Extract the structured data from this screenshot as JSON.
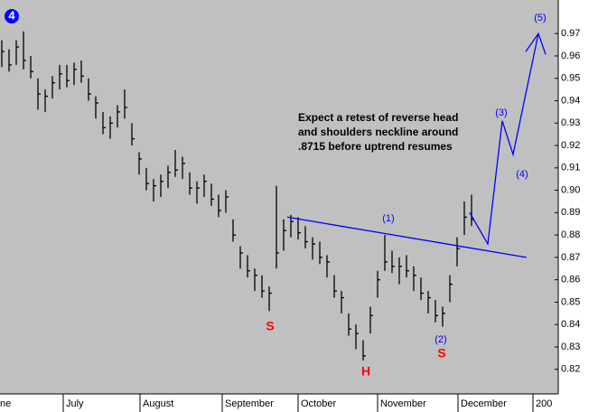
{
  "chart_data": {
    "type": "ohlc",
    "x": [
      0,
      1,
      2,
      3,
      4,
      5,
      6,
      7,
      8,
      9,
      10,
      11,
      12,
      13,
      14,
      15,
      16,
      17,
      18,
      19,
      20,
      21,
      22,
      23,
      24,
      25,
      26,
      27,
      28,
      29,
      30,
      31,
      32,
      33,
      34,
      35,
      36,
      37,
      38,
      39,
      40,
      41,
      42,
      43,
      44,
      45,
      46,
      47,
      48,
      49,
      50,
      51,
      52,
      53,
      54,
      55,
      56,
      57,
      58,
      59,
      60,
      61,
      62,
      63,
      64,
      65
    ],
    "high": [
      0.967,
      0.963,
      0.967,
      0.971,
      0.96,
      0.95,
      0.945,
      0.951,
      0.956,
      0.956,
      0.957,
      0.958,
      0.95,
      0.942,
      0.935,
      0.933,
      0.938,
      0.945,
      0.93,
      0.917,
      0.91,
      0.905,
      0.907,
      0.911,
      0.918,
      0.915,
      0.908,
      0.904,
      0.907,
      0.903,
      0.898,
      0.9,
      0.887,
      0.875,
      0.871,
      0.865,
      0.862,
      0.857,
      0.902,
      0.887,
      0.889,
      0.888,
      0.884,
      0.879,
      0.877,
      0.871,
      0.862,
      0.855,
      0.845,
      0.84,
      0.833,
      0.848,
      0.864,
      0.88,
      0.873,
      0.87,
      0.871,
      0.866,
      0.861,
      0.855,
      0.851,
      0.848,
      0.862,
      0.879,
      0.895,
      0.898
    ],
    "low": [
      0.955,
      0.953,
      0.956,
      0.954,
      0.95,
      0.936,
      0.935,
      0.941,
      0.945,
      0.946,
      0.947,
      0.948,
      0.94,
      0.932,
      0.925,
      0.923,
      0.928,
      0.932,
      0.92,
      0.907,
      0.9,
      0.895,
      0.897,
      0.901,
      0.906,
      0.905,
      0.898,
      0.894,
      0.897,
      0.893,
      0.888,
      0.89,
      0.877,
      0.865,
      0.861,
      0.855,
      0.852,
      0.846,
      0.865,
      0.873,
      0.879,
      0.878,
      0.874,
      0.869,
      0.867,
      0.861,
      0.852,
      0.845,
      0.835,
      0.829,
      0.824,
      0.836,
      0.852,
      0.864,
      0.863,
      0.858,
      0.861,
      0.855,
      0.851,
      0.845,
      0.841,
      0.839,
      0.85,
      0.866,
      0.88,
      0.884
    ],
    "close": [
      0.962,
      0.956,
      0.964,
      0.958,
      0.953,
      0.943,
      0.942,
      0.948,
      0.952,
      0.949,
      0.954,
      0.951,
      0.943,
      0.939,
      0.928,
      0.93,
      0.935,
      0.937,
      0.923,
      0.914,
      0.903,
      0.902,
      0.904,
      0.908,
      0.909,
      0.912,
      0.901,
      0.901,
      0.904,
      0.896,
      0.891,
      0.897,
      0.88,
      0.872,
      0.864,
      0.862,
      0.855,
      0.854,
      0.872,
      0.882,
      0.886,
      0.881,
      0.877,
      0.876,
      0.87,
      0.868,
      0.855,
      0.852,
      0.838,
      0.836,
      0.826,
      0.844,
      0.86,
      0.868,
      0.866,
      0.866,
      0.864,
      0.862,
      0.854,
      0.852,
      0.844,
      0.845,
      0.858,
      0.874,
      0.888,
      0.887
    ],
    "bar_color": "#000000",
    "xlim": [
      -0.25,
      77
    ],
    "ylim": [
      0.809,
      0.985
    ],
    "yticks": [
      0.82,
      0.83,
      0.84,
      0.85,
      0.86,
      0.87,
      0.88,
      0.89,
      {
        "value": 0.9,
        "label": "0.90"
      },
      0.91,
      0.92,
      0.93,
      0.94,
      0.95,
      0.96,
      0.97
    ],
    "xticks": [
      {
        "value": -0.625,
        "label": "ne"
      },
      {
        "value": 8.5,
        "label": "July"
      },
      {
        "value": 19.125,
        "label": "August"
      },
      {
        "value": 30.5,
        "label": "September"
      },
      {
        "value": 41,
        "label": "October"
      },
      {
        "value": 52,
        "label": "November"
      },
      {
        "value": 63.125,
        "label": "December"
      },
      {
        "value": 73.5,
        "label": "200"
      }
    ],
    "neckline": {
      "x": [
        39.5,
        72.6
      ],
      "y": [
        0.888,
        0.87
      ],
      "color": "#0000ff"
    },
    "projection": {
      "x": [
        64.75,
        67.25,
        69.25,
        70.75,
        74.25
      ],
      "y": [
        0.89,
        0.876,
        0.931,
        0.916,
        0.97
      ],
      "color": "#0000ff"
    },
    "wave_badge": "4",
    "annotations": [
      "Expect a retest of reverse head",
      "and shoulders neckline around",
      ".8715 before uptrend resumes"
    ],
    "wave_labels": [
      "(1)",
      "(2)",
      "(3)",
      "(4)",
      "(5)"
    ],
    "pattern_labels": [
      "S",
      "H",
      "S"
    ]
  }
}
